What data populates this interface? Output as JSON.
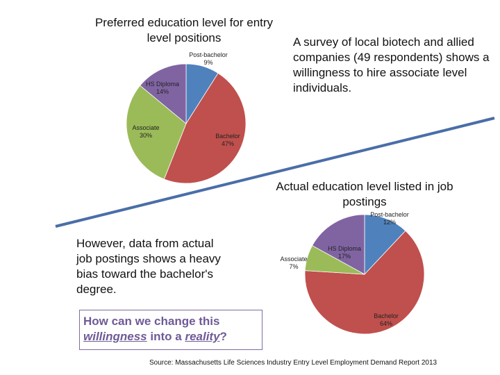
{
  "chart_data": [
    {
      "type": "pie",
      "title": "Preferred education level  for entry level positions",
      "slices": [
        {
          "label": "Post-bachelor",
          "value": 9,
          "display": "9%",
          "color": "#4f81bd"
        },
        {
          "label": "Bachelor",
          "value": 47,
          "display": "47%",
          "color": "#c0504d"
        },
        {
          "label": "Associate",
          "value": 30,
          "display": "30%",
          "color": "#9bbb59"
        },
        {
          "label": "HS Diploma",
          "value": 14,
          "display": "14%",
          "color": "#8064a2"
        }
      ]
    },
    {
      "type": "pie",
      "title": "Actual education level listed in job postings",
      "slices": [
        {
          "label": "Post-bachelor",
          "value": 12,
          "display": "12%",
          "color": "#4f81bd"
        },
        {
          "label": "Bachelor",
          "value": 64,
          "display": "64%",
          "color": "#c0504d"
        },
        {
          "label": "Associate",
          "value": 7,
          "display": "7%",
          "color": "#9bbb59"
        },
        {
          "label": "HS Diploma",
          "value": 17,
          "display": "17%",
          "color": "#8064a2"
        }
      ]
    }
  ],
  "texts": {
    "survey": "A survey of local biotech and allied companies (49 respondents) shows a willingness to hire associate level individuals.",
    "postings": "However, data from actual job postings shows a heavy bias toward the bachelor's degree.",
    "question_part1": "How can we change this",
    "question_willingness": "willingness",
    "question_middle": "into a",
    "question_reality": "reality",
    "question_end": "?",
    "source": "Source: Massachusetts Life Sciences Industry Entry Level Employment Demand Report 2013"
  },
  "colors": {
    "divider_line": "#4a6ea8",
    "question_text": "#6f5a96",
    "question_border": "#7f6aa0"
  }
}
